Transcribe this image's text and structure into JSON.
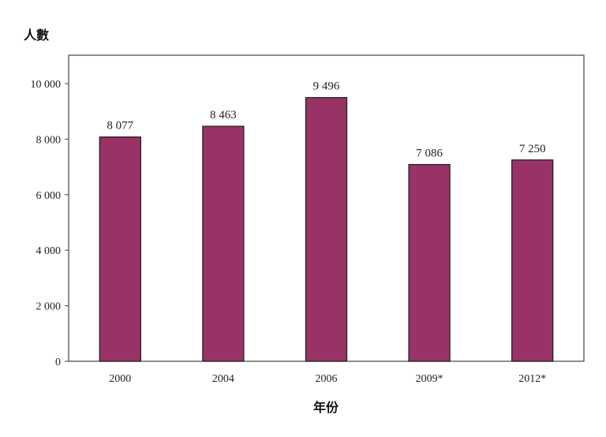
{
  "chart_data": {
    "type": "bar",
    "title": "",
    "xlabel": "年份",
    "ylabel": "人數",
    "categories": [
      "2000",
      "2004",
      "2006",
      "2009*",
      "2012*"
    ],
    "values": [
      8077,
      8463,
      9496,
      7086,
      7250
    ],
    "data_labels": [
      "8 077",
      "8 463",
      "9 496",
      "7 086",
      "7 250"
    ],
    "ylim": [
      0,
      11000
    ],
    "yticks": [
      0,
      2000,
      4000,
      6000,
      8000,
      10000
    ],
    "ytick_labels": [
      "0",
      "2 000",
      "4 000",
      "6 000",
      "8 000",
      "10 000"
    ],
    "grid": false,
    "legend": "none",
    "bar_color": "#993366"
  }
}
